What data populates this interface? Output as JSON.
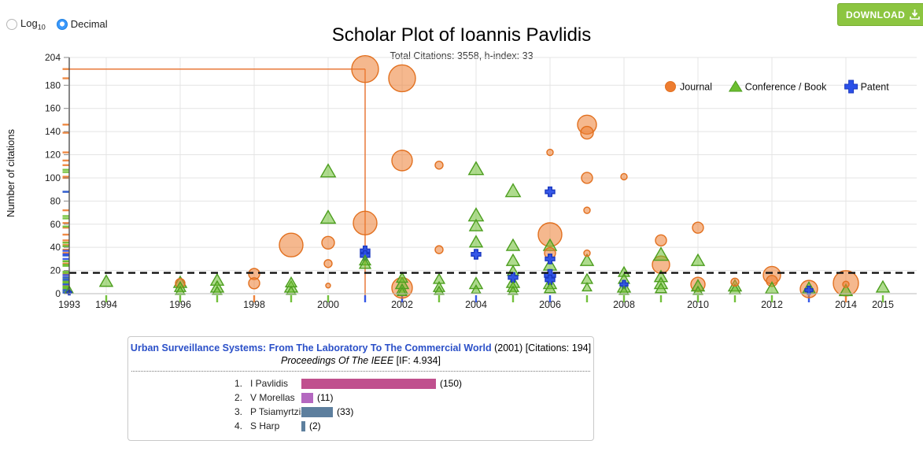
{
  "controls": {
    "log_label": "Log",
    "log_subscript": "10",
    "decimal_label": "Decimal",
    "download_label": "DOWNLOAD"
  },
  "header": {
    "title": "Scholar Plot of Ioannis Pavlidis",
    "subtitle": "Total Citations: 3558, h-index: 33"
  },
  "chart_data": {
    "type": "scatter",
    "title": "Scholar Plot of Ioannis Pavlidis",
    "subtitle": "Total Citations: 3558, h-index: 33",
    "xlabel": "",
    "ylabel": "Number of citations",
    "xlim": [
      1993,
      2015.6
    ],
    "ylim": [
      0,
      204
    ],
    "grid": true,
    "legend_position": "top-right",
    "y_ticks": [
      0,
      20,
      40,
      60,
      80,
      100,
      120,
      140,
      160,
      180,
      204
    ],
    "x_tick_labels": [
      1993,
      1994,
      1996,
      1998,
      2000,
      2002,
      2004,
      2006,
      2008,
      2010,
      2012,
      2014,
      2015
    ],
    "x_gridline_years": [
      1994,
      1996,
      1998,
      2000,
      2002,
      2004,
      2006,
      2008,
      2010,
      2012,
      2014
    ],
    "threshold_line": {
      "y": 18,
      "style": "dashed",
      "color": "#111111"
    },
    "selected_point": {
      "year": 2001,
      "value": 194
    },
    "legend": [
      {
        "label": "Journal",
        "type": "journal"
      },
      {
        "label": "Conference / Book",
        "type": "conference"
      },
      {
        "label": "Patent",
        "type": "patent"
      }
    ],
    "series": [
      {
        "name": "Journal",
        "type": "journal",
        "points": [
          [
            1996,
            9,
            6
          ],
          [
            1998,
            17,
            7
          ],
          [
            1998,
            9,
            7
          ],
          [
            1999,
            42,
            15
          ],
          [
            2000,
            44,
            8
          ],
          [
            2000,
            26,
            5
          ],
          [
            2000,
            7,
            3
          ],
          [
            2001,
            194,
            17
          ],
          [
            2001,
            61,
            15
          ],
          [
            2002,
            186,
            17
          ],
          [
            2002,
            115,
            13
          ],
          [
            2002,
            5,
            13
          ],
          [
            2003,
            111,
            5
          ],
          [
            2003,
            38,
            5
          ],
          [
            2006,
            122,
            4
          ],
          [
            2006,
            51,
            15
          ],
          [
            2006,
            35,
            7
          ],
          [
            2007,
            146,
            12
          ],
          [
            2007,
            139,
            8
          ],
          [
            2007,
            100,
            7
          ],
          [
            2007,
            72,
            4
          ],
          [
            2007,
            35,
            4
          ],
          [
            2008,
            101,
            4
          ],
          [
            2009,
            46,
            7
          ],
          [
            2009,
            25,
            11
          ],
          [
            2010,
            57,
            7
          ],
          [
            2010,
            8,
            9
          ],
          [
            2011,
            10,
            5
          ],
          [
            2012,
            16,
            11
          ],
          [
            2012,
            11,
            7
          ],
          [
            2013,
            4,
            11
          ],
          [
            2014,
            9,
            16
          ],
          [
            2014,
            8,
            4
          ]
        ]
      },
      {
        "name": "Conference / Book",
        "type": "conference",
        "points": [
          [
            1993,
            3,
            4
          ],
          [
            1994,
            10,
            7
          ],
          [
            1996,
            9,
            7
          ],
          [
            1996,
            5,
            6
          ],
          [
            1996,
            2,
            5
          ],
          [
            1997,
            11,
            7
          ],
          [
            1997,
            5,
            7
          ],
          [
            1997,
            2,
            5
          ],
          [
            1999,
            9,
            6
          ],
          [
            1999,
            5,
            7
          ],
          [
            1999,
            2,
            5
          ],
          [
            2000,
            105,
            8
          ],
          [
            2000,
            65,
            8
          ],
          [
            2001,
            28,
            6
          ],
          [
            2001,
            25,
            6
          ],
          [
            2002,
            13,
            6
          ],
          [
            2002,
            8,
            7
          ],
          [
            2002,
            3,
            6
          ],
          [
            2002,
            1,
            5
          ],
          [
            2003,
            12,
            6
          ],
          [
            2003,
            5,
            6
          ],
          [
            2003,
            2,
            5
          ],
          [
            2004,
            107,
            8
          ],
          [
            2004,
            67,
            8
          ],
          [
            2004,
            58,
            7
          ],
          [
            2004,
            44,
            7
          ],
          [
            2004,
            8,
            7
          ],
          [
            2004,
            3,
            5
          ],
          [
            2005,
            88,
            8
          ],
          [
            2005,
            41,
            7
          ],
          [
            2005,
            28,
            7
          ],
          [
            2005,
            19,
            6
          ],
          [
            2005,
            9,
            7
          ],
          [
            2005,
            5,
            6
          ],
          [
            2005,
            2,
            5
          ],
          [
            2006,
            41,
            7
          ],
          [
            2006,
            24,
            7
          ],
          [
            2006,
            8,
            7
          ],
          [
            2006,
            4,
            6
          ],
          [
            2007,
            28,
            7
          ],
          [
            2007,
            12,
            6
          ],
          [
            2007,
            5,
            5
          ],
          [
            2008,
            18,
            6
          ],
          [
            2008,
            12,
            6
          ],
          [
            2008,
            5,
            7
          ],
          [
            2008,
            2,
            5
          ],
          [
            2009,
            33,
            8
          ],
          [
            2009,
            14,
            7
          ],
          [
            2009,
            8,
            7
          ],
          [
            2009,
            4,
            6
          ],
          [
            2010,
            28,
            7
          ],
          [
            2010,
            6,
            7
          ],
          [
            2010,
            2,
            5
          ],
          [
            2011,
            6,
            7
          ],
          [
            2011,
            3,
            6
          ],
          [
            2012,
            4,
            7
          ],
          [
            2013,
            4,
            7
          ],
          [
            2014,
            2,
            7
          ],
          [
            2015,
            5,
            7
          ]
        ]
      },
      {
        "name": "Patent",
        "type": "patent",
        "points": [
          [
            1993,
            1,
            3
          ],
          [
            2001,
            37,
            6
          ],
          [
            2001,
            33,
            6
          ],
          [
            2004,
            34,
            6
          ],
          [
            2005,
            14,
            6
          ],
          [
            2006,
            88,
            6
          ],
          [
            2006,
            30,
            6
          ],
          [
            2006,
            16,
            7
          ],
          [
            2006,
            12,
            6
          ],
          [
            2008,
            8,
            5
          ],
          [
            2013,
            3,
            5
          ]
        ]
      }
    ],
    "x_rug": [
      [
        1994,
        "conference"
      ],
      [
        1996,
        "conference"
      ],
      [
        1997,
        "conference"
      ],
      [
        1998,
        "journal"
      ],
      [
        1999,
        "conference"
      ],
      [
        2000,
        "conference"
      ],
      [
        2001,
        "patent"
      ],
      [
        2002,
        "journal"
      ],
      [
        2002,
        "patent"
      ],
      [
        2003,
        "conference"
      ],
      [
        2004,
        "patent"
      ],
      [
        2005,
        "conference"
      ],
      [
        2006,
        "patent"
      ],
      [
        2007,
        "conference"
      ],
      [
        2008,
        "conference"
      ],
      [
        2009,
        "conference"
      ],
      [
        2010,
        "conference"
      ],
      [
        2011,
        "conference"
      ],
      [
        2012,
        "conference"
      ],
      [
        2013,
        "patent"
      ],
      [
        2014,
        "journal"
      ],
      [
        2015,
        "conference"
      ]
    ]
  },
  "detail_card": {
    "title_link": "Urban Surveillance Systems: From The Laboratory To The Commercial World",
    "title_suffix": " (2001) [Citations: 194]",
    "venue": "Proceedings Of The IEEE",
    "venue_suffix": " [IF: 4.934]",
    "authors": [
      {
        "rank": "1.",
        "name": "I Pavlidis",
        "value": 150,
        "label": "(150)",
        "color": "#c0508e"
      },
      {
        "rank": "2.",
        "name": "V Morellas",
        "value": 11,
        "label": "(11)",
        "color": "#b468c0"
      },
      {
        "rank": "3.",
        "name": "P Tsiamyrtzis",
        "value": 33,
        "label": "(33)",
        "color": "#5d7f9e"
      },
      {
        "rank": "4.",
        "name": "S Harp",
        "value": 2,
        "label": "(2)",
        "color": "#5d7f9e"
      }
    ]
  },
  "colors": {
    "journal_fill": "#ed7d31",
    "journal_stroke": "#e2701f",
    "conference_fill": "#6cbe30",
    "conference_stroke": "#4c9e1e",
    "patent_fill": "#2b50e8",
    "patent_stroke": "#1b38c0",
    "crosshair": "#e8783a",
    "grid": "#e4e4e4",
    "axis": "#555555",
    "download_bg": "#8cc540",
    "radio_selected": "#3b99fc",
    "link": "#2b50c8"
  }
}
